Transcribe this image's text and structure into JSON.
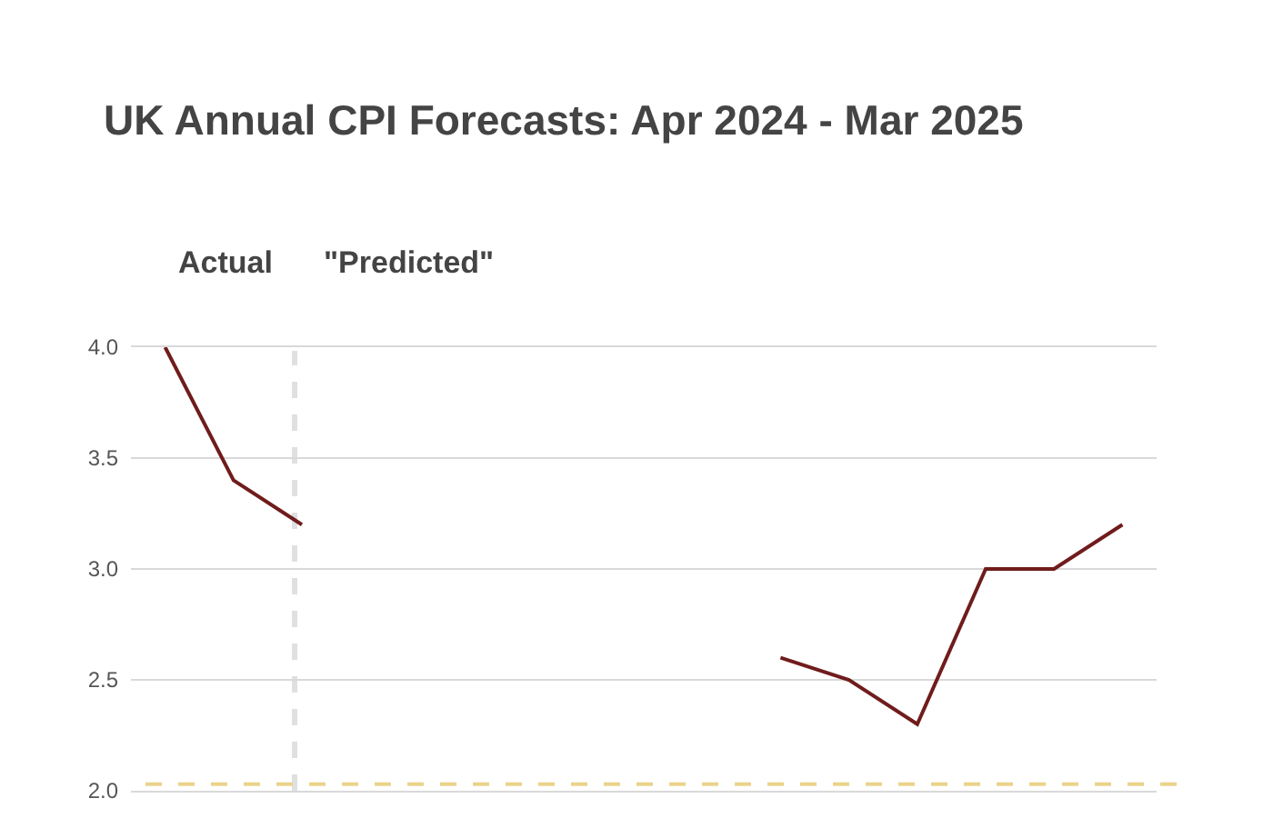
{
  "chart_data": {
    "type": "line",
    "title": "UK Annual CPI Forecasts: Apr 2024 - Mar 2025",
    "annotations": [
      "Actual",
      "\"Predicted\""
    ],
    "categories": [
      null,
      null,
      null,
      null,
      null,
      null,
      null,
      null,
      null,
      null,
      null,
      null,
      null,
      null,
      null
    ],
    "series": [
      {
        "color": "#701c1c",
        "values": [
          4.0,
          3.4,
          3.2,
          null,
          null,
          null,
          null,
          null,
          null,
          2.6,
          2.5,
          2.3,
          3.0,
          3.0,
          3.2
        ]
      }
    ],
    "ylim": [
      2.0,
      4.0
    ],
    "yticks": [
      {
        "value": 2,
        "label": "2.0"
      },
      2.5,
      {
        "value": 3,
        "label": "3.0"
      },
      3.5,
      {
        "value": 4,
        "label": "4.0"
      }
    ],
    "ref_lines": [
      {
        "axis": "y",
        "value": 2.03,
        "color": "#ead38a",
        "line_style": "dashed"
      }
    ],
    "grid": "y",
    "tick_labels": "y",
    "marker": "none",
    "line_style": "solid"
  }
}
